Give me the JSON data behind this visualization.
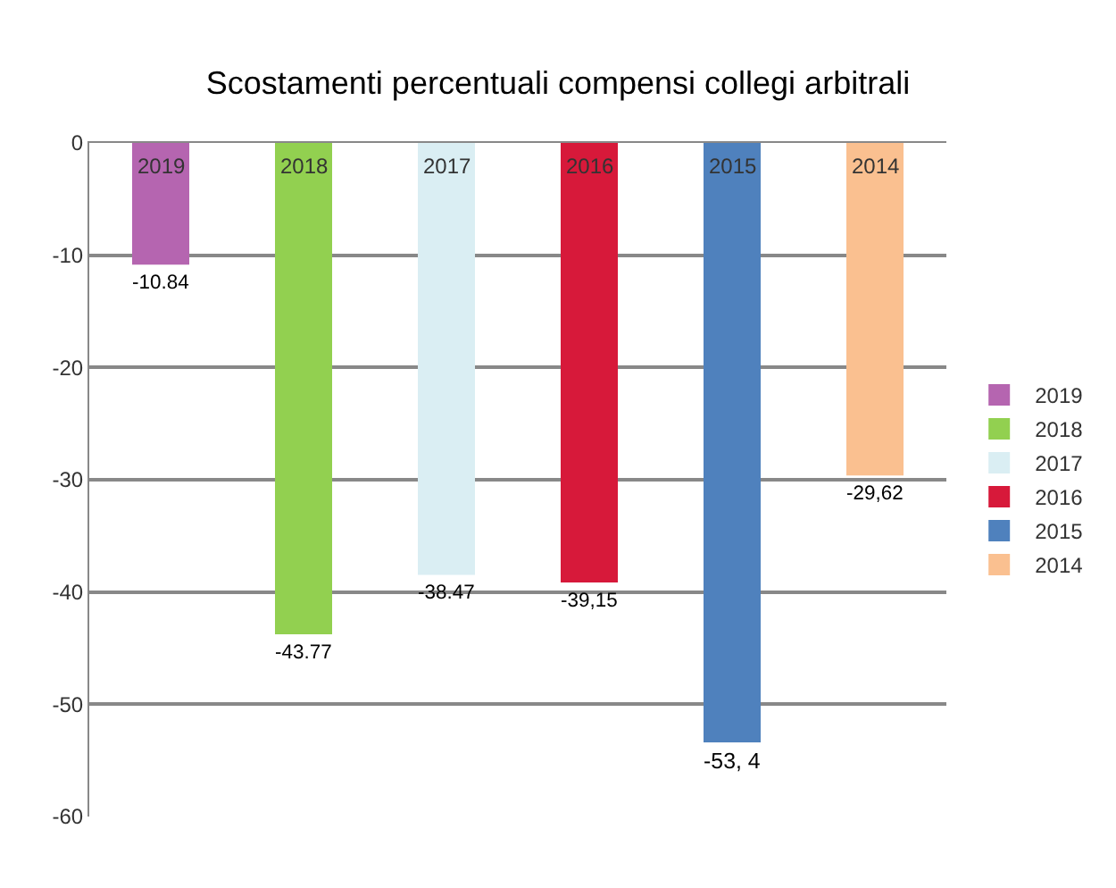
{
  "chart_data": {
    "type": "bar",
    "title": "Scostamenti percentuali compensi collegi arbitrali",
    "categories": [
      "2019",
      "2018",
      "2017",
      "2016",
      "2015",
      "2014"
    ],
    "series": [
      {
        "name": "2019",
        "color": "#b565b0",
        "values": [
          -10.84,
          null,
          null,
          null,
          null,
          null
        ],
        "value_labels": [
          "-10.84",
          null,
          null,
          null,
          null,
          null
        ]
      },
      {
        "name": "2018",
        "color": "#92d050",
        "values": [
          null,
          -43.77,
          null,
          null,
          null,
          null
        ],
        "value_labels": [
          null,
          "-43.77",
          null,
          null,
          null,
          null
        ]
      },
      {
        "name": "2017",
        "color": "#daeef3",
        "values": [
          null,
          null,
          -38.47,
          null,
          null,
          null
        ],
        "value_labels": [
          null,
          null,
          "-38.47",
          null,
          null,
          null
        ]
      },
      {
        "name": "2016",
        "color": "#d7193a",
        "values": [
          null,
          null,
          null,
          -39.15,
          null,
          null
        ],
        "value_labels": [
          null,
          null,
          null,
          "-39,15",
          null,
          null
        ]
      },
      {
        "name": "2015",
        "color": "#4f81bd",
        "values": [
          null,
          null,
          null,
          null,
          -53.4,
          null
        ],
        "value_labels": [
          null,
          null,
          null,
          null,
          "-53, 4",
          null
        ]
      },
      {
        "name": "2014",
        "color": "#fac090",
        "values": [
          null,
          null,
          null,
          null,
          null,
          -29.62
        ],
        "value_labels": [
          null,
          null,
          null,
          null,
          null,
          "-29,62"
        ]
      }
    ],
    "ylim": [
      -60,
      0
    ],
    "yticks": [
      0,
      -10,
      -20,
      -30,
      -40,
      -50,
      -60
    ],
    "grid": "y",
    "legend": "right"
  }
}
